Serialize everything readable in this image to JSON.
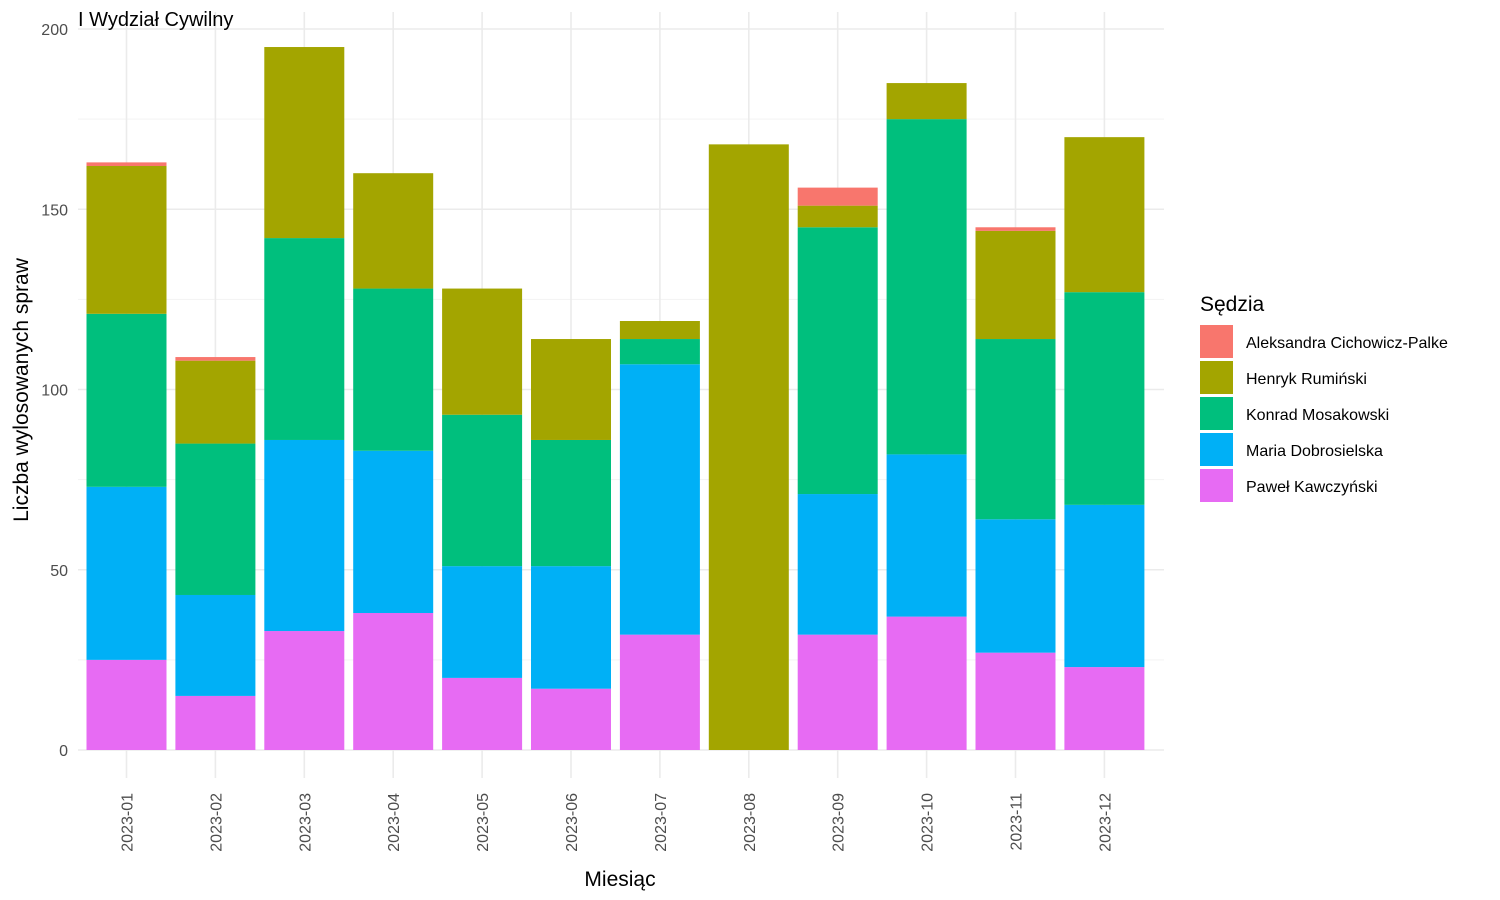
{
  "chart_data": {
    "type": "bar",
    "stacked": true,
    "title": "I Wydział Cywilny",
    "xlabel": "Miesiąc",
    "ylabel": "Liczba wylosowanych spraw",
    "ylim": [
      0,
      200
    ],
    "yticks": [
      0,
      50,
      100,
      150,
      200
    ],
    "grid": true,
    "legend_position": "right",
    "legend_title": "Sędzia",
    "categories": [
      "2023-01",
      "2023-02",
      "2023-03",
      "2023-04",
      "2023-05",
      "2023-06",
      "2023-07",
      "2023-08",
      "2023-09",
      "2023-10",
      "2023-11",
      "2023-12"
    ],
    "series": [
      {
        "name": "Aleksandra Cichowicz-Palke",
        "color": "#F8766D",
        "values": [
          1,
          1,
          0,
          0,
          0,
          0,
          0,
          0,
          5,
          0,
          1,
          0
        ]
      },
      {
        "name": "Henryk Rumiński",
        "color": "#A3A500",
        "values": [
          41,
          23,
          53,
          32,
          35,
          28,
          5,
          168,
          6,
          10,
          30,
          43
        ]
      },
      {
        "name": "Konrad Mosakowski",
        "color": "#00BF7D",
        "values": [
          48,
          42,
          56,
          45,
          42,
          35,
          7,
          0,
          74,
          93,
          50,
          59
        ]
      },
      {
        "name": "Maria Dobrosielska",
        "color": "#00B0F6",
        "values": [
          48,
          28,
          53,
          45,
          31,
          34,
          75,
          0,
          39,
          45,
          37,
          45
        ]
      },
      {
        "name": "Paweł Kawczyński",
        "color": "#E76BF3",
        "values": [
          25,
          15,
          33,
          38,
          20,
          17,
          32,
          0,
          32,
          37,
          27,
          23
        ]
      }
    ]
  }
}
